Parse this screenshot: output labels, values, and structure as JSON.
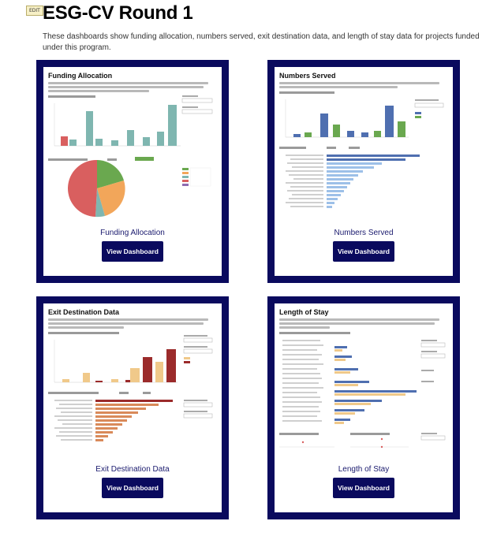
{
  "header": {
    "edit_badge": "EDIT",
    "title": "ESG-CV Round 1",
    "description": "These dashboards show funding allocation, numbers served, exit destination data, and length of stay data for projects funded under this program."
  },
  "cards": [
    {
      "thumbnail_title": "Funding Allocation",
      "label": "Funding Allocation",
      "button": "View Dashboard"
    },
    {
      "thumbnail_title": "Numbers Served",
      "label": "Numbers Served",
      "button": "View Dashboard"
    },
    {
      "thumbnail_title": "Exit Destination Data",
      "label": "Exit Destination Data",
      "button": "View Dashboard"
    },
    {
      "thumbnail_title": "Length of Stay",
      "label": "Length of Stay",
      "button": "View Dashboard"
    }
  ],
  "colors": {
    "card_frame": "#0a0a5e",
    "button": "#0a0a5e",
    "teal": "#7fb6b0",
    "red": "#d95f5f",
    "green": "#6aa84f",
    "blue": "#4f6fb0",
    "light_blue": "#9dc0e8",
    "dark_red": "#9b2b2b",
    "tan": "#f0c98a"
  }
}
